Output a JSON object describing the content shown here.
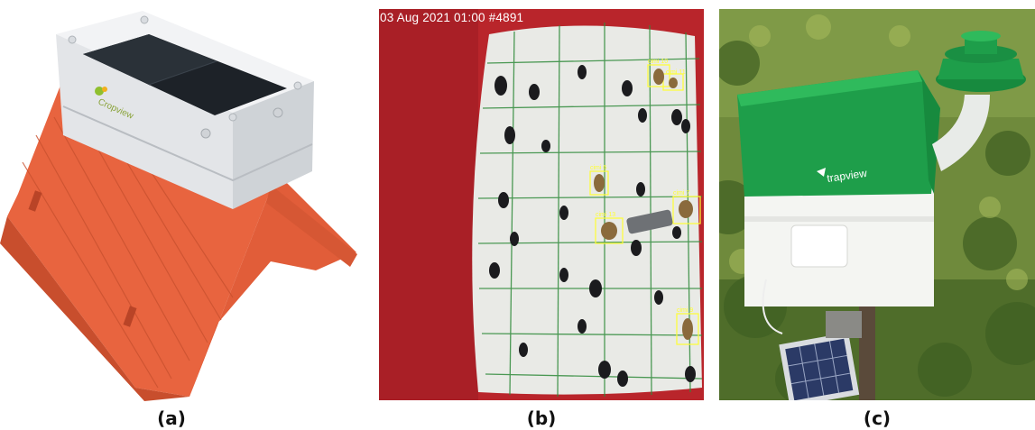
{
  "panels": [
    {
      "caption": "(a)",
      "device_brand": "Cropview"
    },
    {
      "caption": "(b)",
      "camera_stamp": "03 Aug 2021 01:00 #4891",
      "detections": [
        {
          "label": "cimi 10"
        },
        {
          "label": "cimi 11"
        },
        {
          "label": "cimi 6"
        },
        {
          "label": "cimi 7"
        },
        {
          "label": "cimi 13"
        },
        {
          "label": "cimi 9"
        }
      ],
      "colors": {
        "trap_wall": "#b9252b",
        "sticky_grid": "#2f8a3a",
        "bounding_box": "#ffff33"
      }
    },
    {
      "caption": "(c)",
      "device_brand": "trapview",
      "colors": {
        "housing_green": "#1e9e4a",
        "housing_white": "#f4f5f2"
      }
    }
  ]
}
